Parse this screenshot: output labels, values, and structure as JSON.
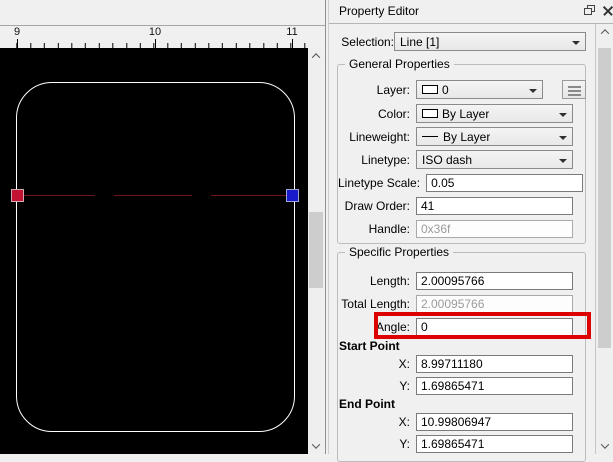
{
  "panel": {
    "title": "Property Editor",
    "selection": {
      "label": "Selection:",
      "value": "Line [1]"
    },
    "general": {
      "title": "General Properties",
      "layer": {
        "label": "Layer:",
        "value": "0"
      },
      "color": {
        "label": "Color:",
        "value": "By Layer"
      },
      "lineweight": {
        "label": "Lineweight:",
        "value": "By Layer"
      },
      "linetype": {
        "label": "Linetype:",
        "value": "ISO dash"
      },
      "linetype_scale": {
        "label": "Linetype Scale:",
        "value": "0.05"
      },
      "draw_order": {
        "label": "Draw Order:",
        "value": "41"
      },
      "handle": {
        "label": "Handle:",
        "value": "0x36f"
      }
    },
    "specific": {
      "title": "Specific Properties",
      "length": {
        "label": "Length:",
        "value": "2.00095766"
      },
      "total_length": {
        "label": "Total Length:",
        "value": "2.00095766"
      },
      "angle": {
        "label": "Angle:",
        "value": "0"
      },
      "start_point": {
        "title": "Start Point",
        "x_label": "X:",
        "x": "8.99711180",
        "y_label": "Y:",
        "y": "1.69865471"
      },
      "end_point": {
        "title": "End Point",
        "x_label": "X:",
        "x": "10.99806947",
        "y_label": "Y:",
        "y": "1.69865471"
      }
    }
  },
  "canvas": {
    "ruler_labels": [
      {
        "text": "9"
      },
      {
        "text": "10"
      },
      {
        "text": "11"
      }
    ],
    "colors": {
      "background": "#000000",
      "shape": "#ffffff",
      "line": "#711418",
      "start_grip": "#c21333",
      "end_grip": "#1a1acd",
      "highlight": "#dd0000"
    }
  }
}
